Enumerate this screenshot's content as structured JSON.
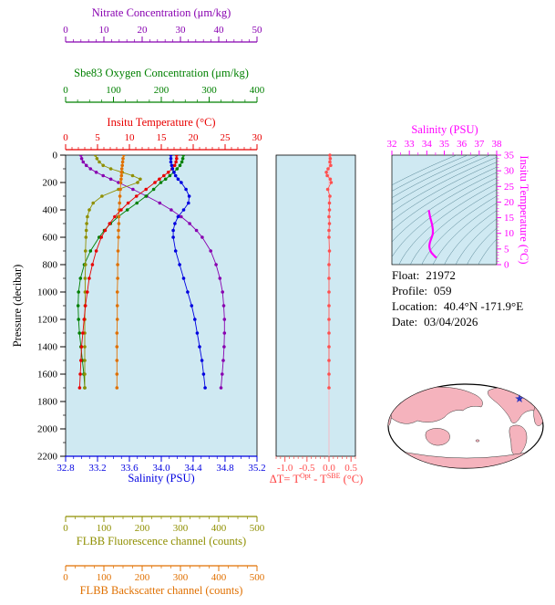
{
  "info": {
    "float_label": "Float:",
    "float_value": "21972",
    "profile_label": "Profile:",
    "profile_value": "059",
    "location_label": "Location:",
    "location_value": "40.4°N  -171.9°E",
    "date_label": "Date:",
    "date_value": "03/04/2026"
  },
  "delta_label": {
    "p1": "ΔT= T",
    "sup1": "Opt",
    "p2": " - T",
    "sup2": "SBE",
    "p3": " (°C)"
  },
  "chart_data": [
    {
      "id": "profiles",
      "type": "line",
      "ylabel": "Pressure (decibar)",
      "ylim": [
        0,
        2200
      ],
      "yticks": [
        0,
        200,
        400,
        600,
        800,
        1000,
        1200,
        1400,
        1600,
        1800,
        2000,
        2200
      ],
      "plot_bg": "#cfe9f2",
      "grid": false,
      "pressure_levels": [
        0,
        25,
        50,
        75,
        100,
        125,
        150,
        175,
        200,
        250,
        300,
        350,
        400,
        450,
        500,
        550,
        600,
        700,
        800,
        900,
        1000,
        1100,
        1200,
        1300,
        1400,
        1500,
        1600,
        1700
      ],
      "axes": [
        {
          "key": "salinity",
          "label": "Salinity (PSU)",
          "side": "bottom",
          "color": "#0000e0",
          "lim": [
            32.8,
            35.2
          ],
          "ticks": [
            32.8,
            33.2,
            33.6,
            34.0,
            34.4,
            34.8,
            35.2
          ],
          "decimals": 1
        },
        {
          "key": "temperature",
          "label": "Insitu Temperature (°C)",
          "side": "top",
          "color": "#e80000",
          "lim": [
            0,
            30
          ],
          "ticks": [
            0,
            5,
            10,
            15,
            20,
            25,
            30
          ],
          "decimals": 0
        },
        {
          "key": "oxygen",
          "label": "Sbe83 Oxygen Concentration (μm/kg)",
          "side": "top",
          "color": "#008000",
          "lim": [
            0,
            400
          ],
          "ticks": [
            0,
            100,
            200,
            300,
            400
          ],
          "decimals": 0
        },
        {
          "key": "nitrate",
          "label": "Nitrate Concentration (μm/kg)",
          "side": "top",
          "color": "#8800b0",
          "lim": [
            0,
            50
          ],
          "ticks": [
            0,
            10,
            20,
            30,
            40,
            50
          ],
          "decimals": 0
        },
        {
          "key": "fluorescence",
          "label": "FLBB Fluorescence channel (counts)",
          "side": "bottom",
          "color": "#8f8f00",
          "lim": [
            0,
            500
          ],
          "ticks": [
            0,
            100,
            200,
            300,
            400,
            500
          ],
          "decimals": 0
        },
        {
          "key": "backscatter",
          "label": "FLBB Backscatter channel (counts)",
          "side": "bottom",
          "color": "#e07000",
          "lim": [
            0,
            500
          ],
          "ticks": [
            0,
            100,
            200,
            300,
            400,
            500
          ],
          "decimals": 0
        }
      ],
      "series": [
        {
          "name": "Nitrate",
          "axis": "nitrate",
          "color": "#8800b0",
          "values": [
            4.0,
            4.2,
            4.6,
            5.4,
            6.5,
            8.0,
            9.8,
            11.8,
            13.8,
            17.6,
            21.2,
            24.6,
            27.6,
            30.2,
            32.4,
            34.2,
            35.7,
            37.9,
            39.3,
            40.3,
            41.0,
            41.3,
            41.5,
            41.5,
            41.4,
            41.2,
            40.9,
            40.6
          ]
        },
        {
          "name": "Sbe83 Oxygen",
          "axis": "oxygen",
          "color": "#008000",
          "values": [
            246,
            245,
            243,
            239,
            233,
            226,
            218,
            209,
            199,
            184,
            168,
            149,
            129,
            110,
            94,
            81,
            70,
            52,
            39,
            31,
            27,
            26,
            27,
            29,
            32,
            35,
            38,
            40
          ]
        },
        {
          "name": "FLBB Fluorescence",
          "axis": "fluorescence",
          "color": "#8f8f00",
          "values": [
            78,
            82,
            88,
            98,
            118,
            148,
            175,
            195,
            188,
            138,
            95,
            72,
            62,
            57,
            55,
            54,
            53,
            52,
            52,
            51,
            51,
            51,
            50,
            50,
            50,
            50,
            50,
            50
          ]
        },
        {
          "name": "FLBB Backscatter",
          "axis": "backscatter",
          "color": "#e07000",
          "values": [
            152,
            150,
            149,
            148,
            147,
            146,
            146,
            145,
            144,
            143,
            142,
            141,
            140,
            139,
            139,
            138,
            138,
            137,
            136,
            136,
            135,
            135,
            135,
            134,
            134,
            134,
            134,
            134
          ]
        },
        {
          "name": "Insitu Temperature",
          "axis": "temperature",
          "color": "#e80000",
          "values": [
            17.4,
            17.4,
            17.3,
            17.1,
            16.7,
            16.1,
            15.4,
            14.7,
            14.0,
            12.6,
            11.1,
            9.8,
            8.7,
            7.7,
            6.9,
            6.2,
            5.6,
            4.8,
            4.2,
            3.7,
            3.4,
            3.1,
            2.9,
            2.7,
            2.5,
            2.4,
            2.3,
            2.2
          ]
        },
        {
          "name": "Salinity",
          "axis": "salinity",
          "color": "#0000e0",
          "values": [
            34.12,
            34.12,
            34.12,
            34.13,
            34.14,
            34.16,
            34.18,
            34.21,
            34.25,
            34.31,
            34.35,
            34.34,
            34.28,
            34.21,
            34.17,
            34.15,
            34.15,
            34.18,
            34.23,
            34.28,
            34.33,
            34.38,
            34.42,
            34.45,
            34.48,
            34.51,
            34.53,
            34.55
          ]
        }
      ]
    },
    {
      "id": "delta_t",
      "type": "scatter",
      "xlabel": "ΔT= T^Opt - T^SBE (°C)",
      "xlim": [
        -1.2,
        0.6
      ],
      "xticks": [
        -1.0,
        -0.5,
        0.0,
        0.5
      ],
      "decimals": 1,
      "tick_color": "#ff5050",
      "label_color": "#ff4040",
      "dot_color": "#ff5050",
      "zero_line_color": "#f6bcc6",
      "plot_bg": "#cfe9f2",
      "pressure_levels": [
        0,
        25,
        50,
        75,
        100,
        125,
        150,
        175,
        200,
        250,
        300,
        350,
        400,
        450,
        500,
        550,
        600,
        700,
        800,
        900,
        1000,
        1100,
        1200,
        1300,
        1400,
        1500,
        1600,
        1700
      ],
      "values": [
        0.02,
        0.03,
        0.02,
        0.04,
        -0.02,
        -0.06,
        -0.04,
        0.03,
        0.05,
        -0.03,
        0.02,
        0.01,
        0.01,
        0.0,
        0.01,
        0.0,
        0.0,
        0.01,
        0.0,
        0.0,
        0.0,
        0.0,
        0.0,
        0.0,
        0.0,
        0.0,
        0.0,
        0.0
      ]
    },
    {
      "id": "ts_diagram",
      "type": "line",
      "xlabel": "Salinity (PSU)",
      "ylabel": "Insitu Temperature (°C)",
      "xlim": [
        32,
        38
      ],
      "xticks": [
        32,
        33,
        34,
        35,
        36,
        37,
        38
      ],
      "ylim": [
        0,
        35
      ],
      "yticks": [
        0,
        5,
        10,
        15,
        20,
        25,
        30,
        35
      ],
      "color": "#ff00ff",
      "plot_bg": "#cfe9f2",
      "contour_color": "#3d7080",
      "salinity": [
        34.12,
        34.12,
        34.12,
        34.13,
        34.14,
        34.16,
        34.18,
        34.21,
        34.25,
        34.31,
        34.35,
        34.34,
        34.28,
        34.21,
        34.17,
        34.15,
        34.15,
        34.18,
        34.23,
        34.28,
        34.33,
        34.38,
        34.42,
        34.45,
        34.48,
        34.51,
        34.53,
        34.55
      ],
      "temperature": [
        17.4,
        17.4,
        17.3,
        17.1,
        16.7,
        16.1,
        15.4,
        14.7,
        14.0,
        12.6,
        11.1,
        9.8,
        8.7,
        7.7,
        6.9,
        6.2,
        5.6,
        4.8,
        4.2,
        3.7,
        3.4,
        3.1,
        2.9,
        2.7,
        2.5,
        2.4,
        2.3,
        2.2
      ]
    }
  ],
  "map": {
    "land_color": "#f5b3bd",
    "ocean_color": "#ffffff",
    "outline_color": "#000000",
    "marker": "float-location-star",
    "marker_color": "#2a35c0"
  }
}
